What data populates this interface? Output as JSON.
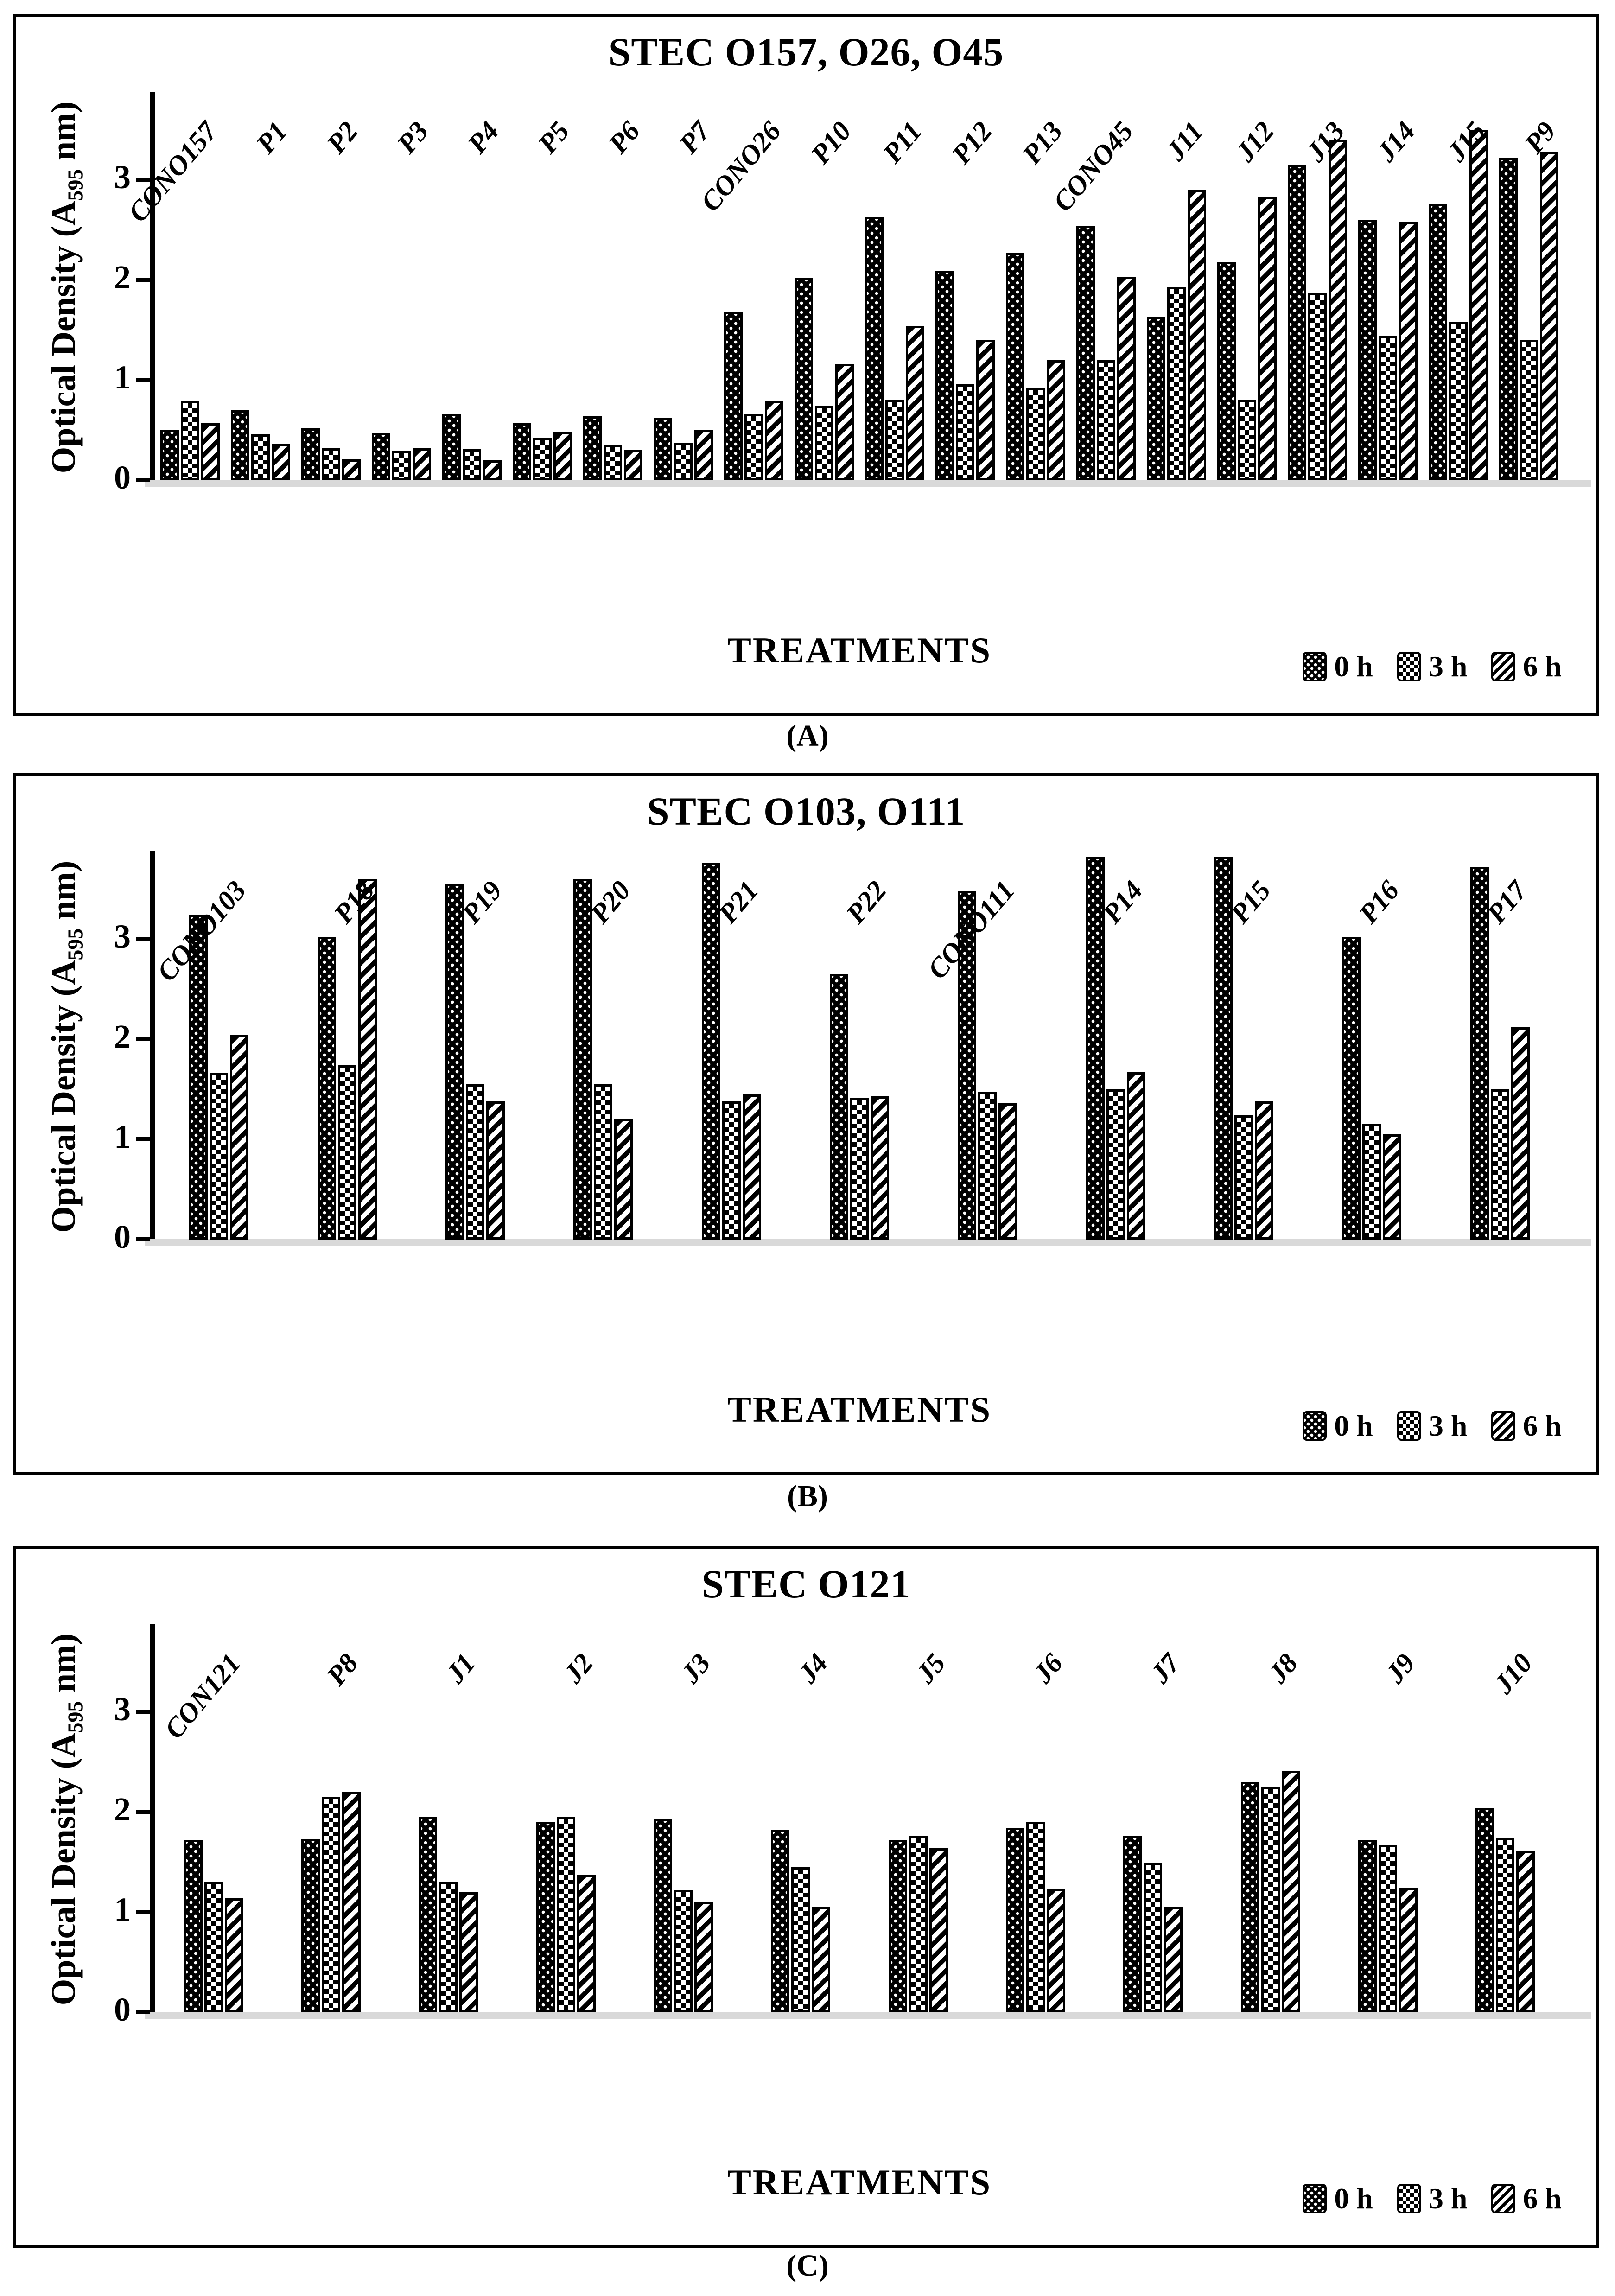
{
  "page": {
    "panel_labels": [
      "(A)",
      "(B)",
      "(C)"
    ]
  },
  "axis": {
    "ylabel_pre": "Optical Density (A",
    "ylabel_sub": "595",
    "ylabel_post": " nm)",
    "xlabel": "TREATMENTS",
    "yticks": [
      0,
      1,
      2,
      3
    ],
    "ymax": 3.85,
    "grid": "off",
    "legend_position": "bottom-right"
  },
  "legend_patterns": [
    "dots-on-black",
    "checkerboard",
    "diagonal-stripes"
  ],
  "chart_data": [
    {
      "type": "bar",
      "title": "STEC O157, O26, O45",
      "xlabel": "TREATMENTS",
      "ylabel": "Optical Density (A595 nm)",
      "ylim": [
        0,
        3.85
      ],
      "categories": [
        "CONO157",
        "P1",
        "P2",
        "P3",
        "P4",
        "P5",
        "P6",
        "P7",
        "CONO26",
        "P10",
        "P11",
        "P12",
        "P13",
        "CONO45",
        "J11",
        "J12",
        "J13",
        "J14",
        "J15",
        "P9"
      ],
      "series": [
        {
          "name": "0 h",
          "values": [
            0.5,
            0.7,
            0.52,
            0.47,
            0.66,
            0.57,
            0.64,
            0.62,
            1.68,
            2.02,
            2.63,
            2.09,
            2.27,
            2.54,
            1.63,
            2.18,
            3.15,
            2.6,
            2.76,
            3.22
          ]
        },
        {
          "name": "3 h",
          "values": [
            0.79,
            0.46,
            0.32,
            0.29,
            0.31,
            0.42,
            0.35,
            0.37,
            0.66,
            0.74,
            0.8,
            0.96,
            0.92,
            1.2,
            1.93,
            0.8,
            1.87,
            1.44,
            1.58,
            1.4
          ]
        },
        {
          "name": "6 h",
          "values": [
            0.57,
            0.36,
            0.21,
            0.32,
            0.2,
            0.48,
            0.3,
            0.5,
            0.79,
            1.16,
            1.54,
            1.4,
            1.2,
            2.03,
            2.9,
            2.83,
            3.4,
            2.58,
            3.5,
            3.28
          ]
        }
      ]
    },
    {
      "type": "bar",
      "title": "STEC O103, O111",
      "xlabel": "TREATMENTS",
      "ylabel": "Optical Density (A595 nm)",
      "ylim": [
        0,
        3.85
      ],
      "categories": [
        "CONO103",
        "P18",
        "P19",
        "P20",
        "P21",
        "P22",
        "CONO111",
        "P14",
        "P15",
        "P16",
        "P17"
      ],
      "series": [
        {
          "name": "0 h",
          "values": [
            3.24,
            3.02,
            3.55,
            3.6,
            3.76,
            2.65,
            3.48,
            3.82,
            3.82,
            3.02,
            3.72
          ]
        },
        {
          "name": "3 h",
          "values": [
            1.66,
            1.74,
            1.55,
            1.55,
            1.38,
            1.41,
            1.47,
            1.5,
            1.24,
            1.15,
            1.5
          ]
        },
        {
          "name": "6 h",
          "values": [
            2.04,
            3.6,
            1.38,
            1.21,
            1.45,
            1.43,
            1.36,
            1.67,
            1.38,
            1.05,
            2.12
          ]
        }
      ]
    },
    {
      "type": "bar",
      "title": "STEC O121",
      "xlabel": "TREATMENTS",
      "ylabel": "Optical Density (A595 nm)",
      "ylim": [
        0,
        3.85
      ],
      "categories": [
        "CON121",
        "P8",
        "J1",
        "J2",
        "J3",
        "J4",
        "J5",
        "J6",
        "J7",
        "J8",
        "J9",
        "J10"
      ],
      "series": [
        {
          "name": "0 h",
          "values": [
            1.72,
            1.73,
            1.95,
            1.9,
            1.93,
            1.82,
            1.72,
            1.84,
            1.76,
            2.3,
            1.72,
            2.04
          ]
        },
        {
          "name": "3 h",
          "values": [
            1.3,
            2.15,
            1.3,
            1.95,
            1.22,
            1.45,
            1.76,
            1.9,
            1.49,
            2.25,
            1.67,
            1.74
          ]
        },
        {
          "name": "6 h",
          "values": [
            1.14,
            2.2,
            1.2,
            1.37,
            1.1,
            1.05,
            1.64,
            1.23,
            1.05,
            2.41,
            1.24,
            1.61
          ]
        }
      ]
    }
  ]
}
